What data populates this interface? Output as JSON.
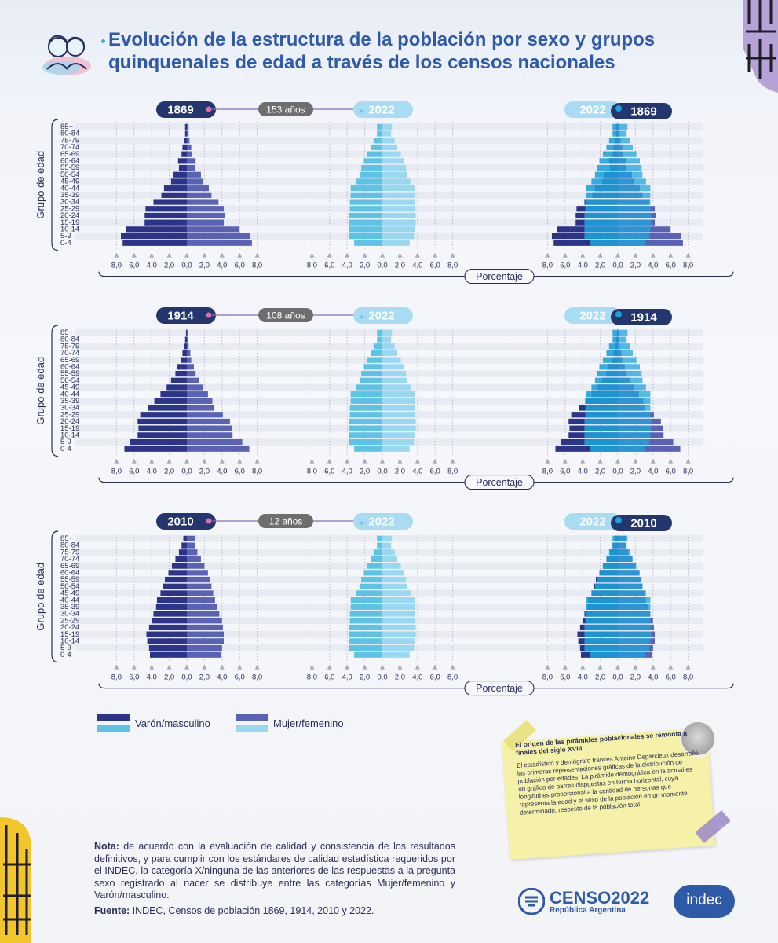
{
  "title": {
    "line1": "Evolución de la estructura de la población por sexo y grupos",
    "line2": "quinquenales de edad a través de los censos nacionales"
  },
  "colors": {
    "varon_historic": "#2c3488",
    "mujer_historic": "#5a62b4",
    "varon_2022": "#5ec2e4",
    "mujer_2022": "#9ad8f2",
    "overlay_varon_2022": "#1ca0dc",
    "overlay_mujer_2022": "#22a6de",
    "badge_dark": "#23366e",
    "badge_light": "#a8dcf2",
    "gap_badge": "#6e6e6e"
  },
  "chart_data": [
    {
      "type": "bar",
      "subtype": "population-pyramid",
      "comparison": {
        "from": "1869",
        "to": "2022",
        "gap_label": "153 años",
        "overlay_label": "1869"
      },
      "age_groups": [
        "85+",
        "80-84",
        "75-79",
        "70-74",
        "65-69",
        "60-64",
        "55-59",
        "50-54",
        "45-49",
        "40-44",
        "35-39",
        "30-34",
        "25-29",
        "20-24",
        "15-19",
        "10-14",
        "5-9",
        "0-4"
      ],
      "ylabel": "Grupo de edad",
      "xlabel": "Porcentaje",
      "xticks": [
        "8,0",
        "6,0",
        "4,0",
        "2,0",
        "0,0",
        "2,0",
        "4,0",
        "6,0",
        "8,0"
      ],
      "xlim": [
        -8,
        8
      ],
      "series": [
        {
          "name": "Varón/masculino",
          "year": "1869",
          "values": [
            0.2,
            0.2,
            0.3,
            0.5,
            0.6,
            1.0,
            0.9,
            1.6,
            1.8,
            2.6,
            2.9,
            3.8,
            4.7,
            4.8,
            4.8,
            6.9,
            7.5,
            7.3
          ]
        },
        {
          "name": "Mujer/femenino",
          "year": "1869",
          "values": [
            0.2,
            0.2,
            0.3,
            0.5,
            0.6,
            1.0,
            0.9,
            1.6,
            1.8,
            2.5,
            2.8,
            3.6,
            4.2,
            4.3,
            4.2,
            6.0,
            7.2,
            7.4
          ]
        },
        {
          "name": "Varón/masculino",
          "year": "2022",
          "values": [
            0.6,
            0.6,
            1.0,
            1.3,
            1.7,
            2.1,
            2.4,
            2.6,
            3.0,
            3.6,
            3.6,
            3.7,
            3.7,
            3.8,
            3.8,
            3.8,
            3.8,
            3.2
          ]
        },
        {
          "name": "Mujer/femenino",
          "year": "2022",
          "values": [
            1.1,
            1.0,
            1.4,
            1.7,
            2.1,
            2.5,
            2.7,
            2.8,
            3.2,
            3.7,
            3.7,
            3.7,
            3.7,
            3.8,
            3.8,
            3.7,
            3.6,
            3.1
          ]
        }
      ]
    },
    {
      "type": "bar",
      "subtype": "population-pyramid",
      "comparison": {
        "from": "1914",
        "to": "2022",
        "gap_label": "108 años",
        "overlay_label": "1914"
      },
      "age_groups": [
        "85+",
        "80-84",
        "75-79",
        "70-74",
        "65-69",
        "60-64",
        "55-59",
        "50-54",
        "45-49",
        "40-44",
        "35-39",
        "30-34",
        "25-29",
        "20-24",
        "15-19",
        "10-14",
        "5-9",
        "0-4"
      ],
      "ylabel": "Grupo de edad",
      "xlabel": "Porcentaje",
      "xticks": [
        "8,0",
        "6,0",
        "4,0",
        "2,0",
        "0,0",
        "2,0",
        "4,0",
        "6,0",
        "8,0"
      ],
      "xlim": [
        -8,
        8
      ],
      "series": [
        {
          "name": "Varón/masculino",
          "year": "1914",
          "values": [
            0.1,
            0.2,
            0.3,
            0.5,
            0.7,
            1.1,
            1.3,
            1.8,
            2.3,
            3.0,
            3.7,
            4.4,
            5.3,
            5.6,
            5.5,
            5.6,
            6.5,
            7.1
          ]
        },
        {
          "name": "Mujer/femenino",
          "year": "1914",
          "values": [
            0.1,
            0.1,
            0.2,
            0.4,
            0.5,
            0.8,
            1.0,
            1.4,
            1.8,
            2.4,
            2.9,
            3.1,
            4.1,
            4.9,
            5.1,
            5.2,
            6.3,
            7.1
          ]
        },
        {
          "name": "Varón/masculino",
          "year": "2022",
          "values": [
            0.6,
            0.6,
            1.0,
            1.3,
            1.7,
            2.1,
            2.4,
            2.6,
            3.0,
            3.6,
            3.6,
            3.7,
            3.7,
            3.8,
            3.8,
            3.8,
            3.8,
            3.2
          ]
        },
        {
          "name": "Mujer/femenino",
          "year": "2022",
          "values": [
            1.1,
            1.0,
            1.4,
            1.7,
            2.1,
            2.5,
            2.7,
            2.8,
            3.2,
            3.7,
            3.7,
            3.7,
            3.7,
            3.8,
            3.8,
            3.7,
            3.6,
            3.1
          ]
        }
      ]
    },
    {
      "type": "bar",
      "subtype": "population-pyramid",
      "comparison": {
        "from": "2010",
        "to": "2022",
        "gap_label": "12 años",
        "overlay_label": "2010"
      },
      "age_groups": [
        "85+",
        "80-84",
        "75-79",
        "70-74",
        "65-69",
        "60-64",
        "55-59",
        "50-54",
        "45-49",
        "40-44",
        "35-39",
        "30-34",
        "25-29",
        "20-24",
        "15-19",
        "10-14",
        "5-9",
        "0-4"
      ],
      "ylabel": "Grupo de edad",
      "xlabel": "Porcentaje",
      "xticks": [
        "8,0",
        "6,0",
        "4,0",
        "2,0",
        "0,0",
        "2,0",
        "4,0",
        "6,0",
        "8,0"
      ],
      "xlim": [
        -8,
        8
      ],
      "series": [
        {
          "name": "Varón/masculino",
          "year": "2010",
          "values": [
            0.4,
            0.6,
            0.9,
            1.3,
            1.7,
            2.1,
            2.5,
            2.7,
            3.0,
            3.4,
            3.5,
            3.8,
            4.0,
            4.3,
            4.6,
            4.5,
            4.3,
            4.2
          ]
        },
        {
          "name": "Mujer/femenino",
          "year": "2010",
          "values": [
            0.9,
            0.9,
            1.2,
            1.6,
            2.0,
            2.4,
            2.6,
            2.8,
            3.0,
            3.2,
            3.4,
            3.7,
            4.0,
            4.1,
            4.2,
            4.2,
            4.0,
            3.9
          ]
        },
        {
          "name": "Varón/masculino",
          "year": "2022",
          "values": [
            0.6,
            0.6,
            1.0,
            1.3,
            1.7,
            2.1,
            2.4,
            2.6,
            3.0,
            3.6,
            3.6,
            3.7,
            3.7,
            3.8,
            3.8,
            3.8,
            3.8,
            3.2
          ]
        },
        {
          "name": "Mujer/femenino",
          "year": "2022",
          "values": [
            1.1,
            1.0,
            1.4,
            1.7,
            2.1,
            2.5,
            2.7,
            2.8,
            3.2,
            3.7,
            3.7,
            3.7,
            3.7,
            3.8,
            3.8,
            3.7,
            3.6,
            3.1
          ]
        }
      ]
    }
  ],
  "legend": {
    "varon": "Varón/masculino",
    "mujer": "Mujer/femenino"
  },
  "note": {
    "title": "El origen de las pirámides poblacionales se remonta a finales del siglo XVIII",
    "body": "El estadístico y demógrafo francés Antoine Deparcieux desarrolló las primeras representaciones gráficas de la distribución de población por edades. La pirámide demográfica en la actual es un gráfico de barras dispuestas en forma horizontal, cuya longitud es proporcional a la cantidad de personas que representa la edad y el sexo de la población en un momento determinado, respecto de la población total."
  },
  "footnote": {
    "nota_label": "Nota:",
    "nota_text": " de acuerdo con la evaluación de calidad y consistencia de los resultados definitivos, y para cumplir con los estándares de calidad estadística requeridos por el INDEC, la categoría X/ninguna de las anteriores de las respuestas a la pregunta sexo registrado al nacer se distribuye entre las categorías Mujer/femenino y Varón/masculino.",
    "fuente_label": "Fuente:",
    "fuente_text": " INDEC, Censos de población 1869, 1914, 2010 y 2022."
  },
  "logos": {
    "censo_name": "CENSO2022",
    "censo_sub": "República Argentina",
    "indec": "indec"
  }
}
